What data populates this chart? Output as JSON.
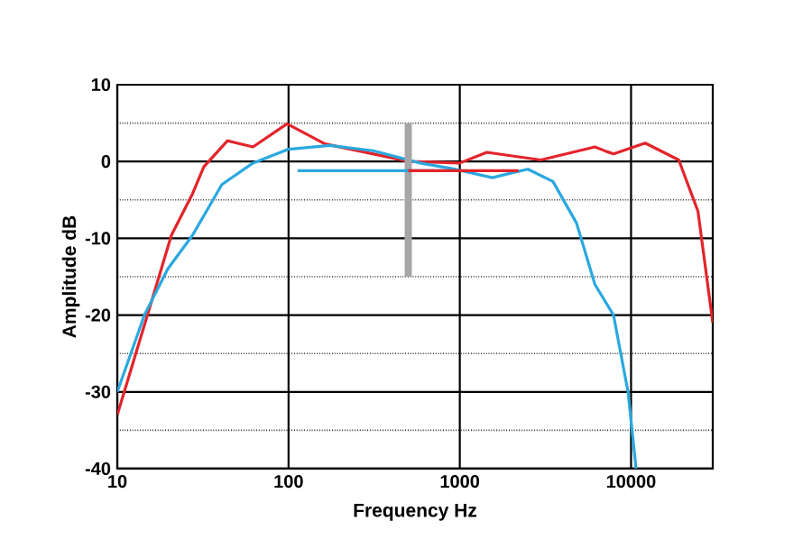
{
  "chart_data": {
    "type": "line",
    "xlabel": "Frequency  Hz",
    "ylabel": "Amplitude dB",
    "log": "x",
    "grid": true,
    "xlim": [
      10,
      30000
    ],
    "ylim": [
      -40,
      10
    ],
    "xticks": [
      10,
      100,
      1000,
      10000
    ],
    "yticks": [
      -40,
      {
        "value": -35,
        "label": null
      },
      -30,
      {
        "value": -25,
        "label": null
      },
      -20,
      {
        "value": -15,
        "label": null
      },
      -10,
      {
        "value": -5,
        "label": null
      },
      0,
      {
        "value": 5,
        "label": null
      },
      10
    ],
    "series": [
      {
        "color": "#e3242b",
        "x": [
          10,
          15,
          20.7,
          27.5,
          32,
          44,
          62,
          98,
          163,
          507,
          1000,
          1440,
          2970,
          6150,
          7200,
          7900,
          12100,
          19000,
          24600,
          30000
        ],
        "values": [
          -33,
          -20,
          -9.6,
          -4.2,
          -0.7,
          2.7,
          1.9,
          4.9,
          2.3,
          0,
          -0.2,
          1.2,
          0.2,
          1.9,
          1.3,
          1,
          2.4,
          0.2,
          -6.5,
          -21
        ]
      },
      {
        "color": "#2aa8df",
        "x": [
          10,
          12,
          14.4,
          19.7,
          27.5,
          40.8,
          62,
          100,
          174,
          312,
          587,
          886,
          1550,
          2080,
          2500,
          3500,
          4800,
          6150,
          7900,
          9600,
          10700
        ],
        "values": [
          -30,
          -25,
          -20,
          -14,
          -9.6,
          -3,
          -0.2,
          1.6,
          2.1,
          1.4,
          -0.2,
          -0.9,
          -2.1,
          -1.4,
          -1,
          -2.6,
          -8,
          -16,
          -20,
          -30,
          -40
        ]
      },
      {
        "color": "#a6a6a6",
        "x": [
          500,
          500
        ],
        "values": [
          -15,
          5
        ]
      },
      {
        "color": "#2aa8df",
        "x": [
          890,
          113
        ],
        "values": [
          -1.2,
          -1.2
        ]
      },
      {
        "color": "#e3242b",
        "x": [
          500,
          2200
        ],
        "values": [
          -1.2,
          -1.2
        ]
      }
    ]
  }
}
